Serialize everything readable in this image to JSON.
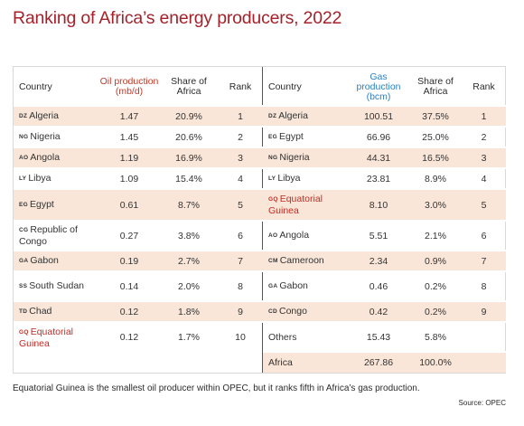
{
  "title": "Ranking of Africa’s energy producers, 2022",
  "oil": {
    "headers": [
      "Country",
      "Oil production (mb/d)",
      "Share of Africa",
      "Rank"
    ],
    "rows": [
      {
        "code": "DZ",
        "country": "Algeria",
        "value": "1.47",
        "share": "20.9%",
        "rank": "1"
      },
      {
        "code": "NG",
        "country": "Nigeria",
        "value": "1.45",
        "share": "20.6%",
        "rank": "2"
      },
      {
        "code": "AO",
        "country": "Angola",
        "value": "1.19",
        "share": "16.9%",
        "rank": "3"
      },
      {
        "code": "LY",
        "country": "Libya",
        "value": "1.09",
        "share": "15.4%",
        "rank": "4"
      },
      {
        "code": "EG",
        "country": "Egypt",
        "value": "0.61",
        "share": "8.7%",
        "rank": "5"
      },
      {
        "code": "CG",
        "country": "Republic of Congo",
        "value": "0.27",
        "share": "3.8%",
        "rank": "6"
      },
      {
        "code": "GA",
        "country": "Gabon",
        "value": "0.19",
        "share": "2.7%",
        "rank": "7"
      },
      {
        "code": "SS",
        "country": "South Sudan",
        "value": "0.14",
        "share": "2.0%",
        "rank": "8"
      },
      {
        "code": "TD",
        "country": "Chad",
        "value": "0.12",
        "share": "1.8%",
        "rank": "9"
      },
      {
        "code": "GQ",
        "country": "Equatorial Guinea",
        "value": "0.12",
        "share": "1.7%",
        "rank": "10",
        "highlight": true
      }
    ]
  },
  "gas": {
    "headers": [
      "Country",
      "Gas production (bcm)",
      "Share of Africa",
      "Rank"
    ],
    "rows": [
      {
        "code": "DZ",
        "country": "Algeria",
        "value": "100.51",
        "share": "37.5%",
        "rank": "1"
      },
      {
        "code": "EG",
        "country": "Egypt",
        "value": "66.96",
        "share": "25.0%",
        "rank": "2"
      },
      {
        "code": "NG",
        "country": "Nigeria",
        "value": "44.31",
        "share": "16.5%",
        "rank": "3"
      },
      {
        "code": "LY",
        "country": "Libya",
        "value": "23.81",
        "share": "8.9%",
        "rank": "4"
      },
      {
        "code": "GQ",
        "country": "Equatorial Guinea",
        "value": "8.10",
        "share": "3.0%",
        "rank": "5",
        "highlight": true
      },
      {
        "code": "AO",
        "country": "Angola",
        "value": "5.51",
        "share": "2.1%",
        "rank": "6"
      },
      {
        "code": "CM",
        "country": "Cameroon",
        "value": "2.34",
        "share": "0.9%",
        "rank": "7"
      },
      {
        "code": "GA",
        "country": "Gabon",
        "value": "0.46",
        "share": "0.2%",
        "rank": "8"
      },
      {
        "code": "CD",
        "country": "Congo",
        "value": "0.42",
        "share": "0.2%",
        "rank": "9"
      },
      {
        "code": "",
        "country": "Others",
        "value": "15.43",
        "share": "5.8%",
        "rank": ""
      },
      {
        "code": "",
        "country": "Africa",
        "value": "267.86",
        "share": "100.0%",
        "rank": ""
      }
    ]
  },
  "footnote": "Equatorial Guinea is the smallest oil producer within OPEC, but it ranks fifth in Africa’s gas production.",
  "source": "Source: OPEC",
  "colors": {
    "title": "#a5222b",
    "oil_header": "#c43a2a",
    "gas_header": "#2f7fc0",
    "row_shade": "#f9e6d8",
    "highlight_country": "#c42a22"
  }
}
